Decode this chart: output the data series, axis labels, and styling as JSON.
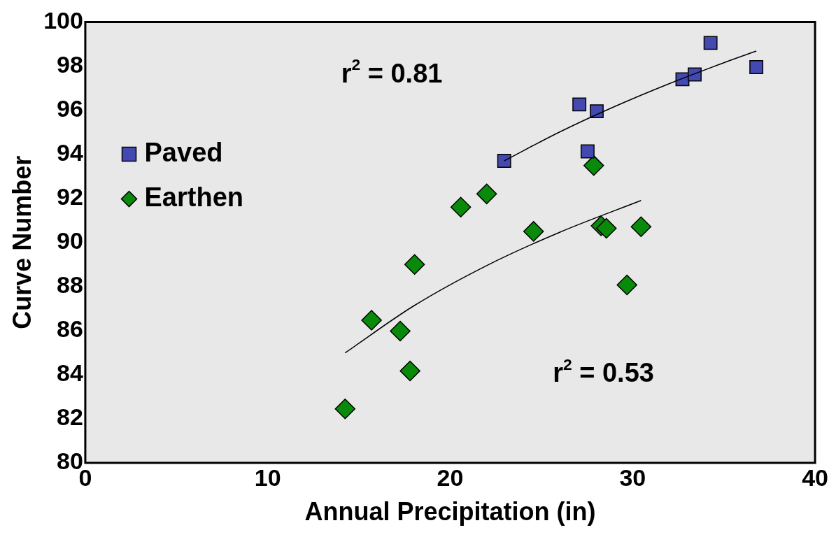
{
  "chart_data": {
    "type": "scatter",
    "xlabel": "Annual Precipitation (in)",
    "ylabel": "Curve Number",
    "xlim": [
      0,
      40
    ],
    "xticks": [
      0,
      10,
      20,
      30,
      40
    ],
    "ylim": [
      80,
      100
    ],
    "yticks": [
      80,
      82,
      84,
      86,
      88,
      90,
      92,
      94,
      96,
      98,
      100
    ],
    "grid": false,
    "legend": "left",
    "series": [
      {
        "name": "Paved",
        "color": "#4349b0",
        "marker": "square",
        "x": [
          22.96,
          27.08,
          28.03,
          27.53,
          32.73,
          33.4,
          34.27,
          36.78
        ],
        "values": [
          93.7,
          96.26,
          95.95,
          94.13,
          97.4,
          97.62,
          99.05,
          97.95
        ]
      },
      {
        "name": "Earthen",
        "color": "#0a8a0a",
        "marker": "diamond",
        "x": [
          14.24,
          15.69,
          17.26,
          17.8,
          18.05,
          20.58,
          22.0,
          24.57,
          27.87,
          28.27,
          28.56,
          29.69,
          30.46
        ],
        "values": [
          82.45,
          86.47,
          85.98,
          84.17,
          89.0,
          91.6,
          92.2,
          90.5,
          93.49,
          90.75,
          90.64,
          88.07,
          90.71
        ]
      },
      {
        "type": "line",
        "color": "#000000",
        "marker": "none",
        "x": [
          22.96,
          26,
          29,
          32,
          35,
          36.78
        ],
        "values": [
          93.7,
          95.01,
          96.16,
          97.2,
          98.15,
          98.68
        ]
      },
      {
        "type": "line",
        "color": "#000000",
        "marker": "none",
        "x": [
          14.24,
          18,
          22,
          26,
          30.46
        ],
        "values": [
          84.99,
          87.12,
          88.95,
          90.46,
          91.9
        ]
      }
    ],
    "annotations": [
      "r$^{2}$ = 0.81",
      "r$^{2}$ = 0.53"
    ]
  }
}
